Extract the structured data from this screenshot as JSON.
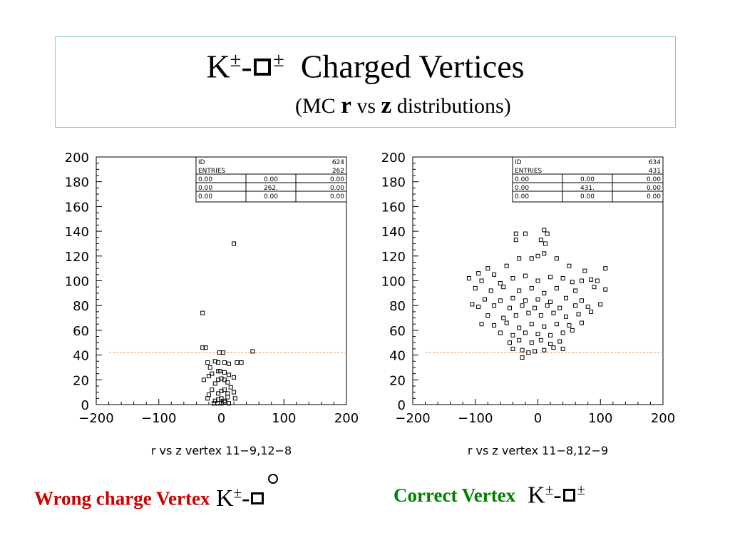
{
  "header": {
    "title_k": "K",
    "title_pm1": "±",
    "title_dash": "-",
    "title_pm2": "±",
    "title_text": "Charged Vertices",
    "subtitle_open": "(MC",
    "subtitle_r": "r",
    "subtitle_vs": "vs",
    "subtitle_z": "z",
    "subtitle_close": "distributions)"
  },
  "captions": {
    "wrong_label": "Wrong charge Vertex",
    "wrong_k": "K",
    "wrong_pm": "±",
    "wrong_dash": "-",
    "correct_label": "Correct Vertex",
    "correct_k": "K",
    "correct_pm1": "±",
    "correct_dash": "-",
    "correct_pm2": "±",
    "colors": {
      "wrong": "#cc0000",
      "correct": "#008000"
    }
  },
  "chart_data": [
    {
      "type": "scatter",
      "title": "",
      "xlabel": "r vs z vertex 11-9,12-8",
      "ylabel": "",
      "xlim": [
        -200,
        200
      ],
      "ylim": [
        0,
        200
      ],
      "xticks": [
        -200,
        -100,
        0,
        100,
        200
      ],
      "yticks": [
        0,
        20,
        40,
        60,
        80,
        100,
        120,
        140,
        160,
        180,
        200
      ],
      "cut_line_y": 42,
      "cut_line_color": "#e8956a",
      "stats": {
        "id_label": "ID",
        "id_value": "624",
        "entries_label": "ENTRIES",
        "entries_value": "262",
        "rows": [
          [
            "0.00",
            "0.00",
            "0.00"
          ],
          [
            "0.00",
            "262.",
            "0.00"
          ],
          [
            "0.00",
            "0.00",
            "0.00"
          ]
        ]
      },
      "points": [
        [
          -30,
          74
        ],
        [
          -30,
          46
        ],
        [
          -25,
          46
        ],
        [
          -3,
          42
        ],
        [
          3,
          42
        ],
        [
          20,
          130
        ],
        [
          50,
          43
        ],
        [
          -22,
          34
        ],
        [
          -18,
          30
        ],
        [
          -10,
          35
        ],
        [
          -5,
          34
        ],
        [
          5,
          34
        ],
        [
          12,
          33
        ],
        [
          25,
          34
        ],
        [
          32,
          34
        ],
        [
          -28,
          20
        ],
        [
          -20,
          23
        ],
        [
          -15,
          25
        ],
        [
          -5,
          27
        ],
        [
          -2,
          27
        ],
        [
          5,
          26
        ],
        [
          12,
          24
        ],
        [
          20,
          22
        ],
        [
          -15,
          12
        ],
        [
          -10,
          17
        ],
        [
          -5,
          20
        ],
        [
          0,
          21
        ],
        [
          5,
          20
        ],
        [
          10,
          18
        ],
        [
          15,
          14
        ],
        [
          -20,
          8
        ],
        [
          -5,
          9
        ],
        [
          0,
          11
        ],
        [
          5,
          12
        ],
        [
          10,
          9
        ],
        [
          20,
          10
        ],
        [
          -22,
          5
        ],
        [
          -10,
          3
        ],
        [
          -5,
          4
        ],
        [
          0,
          5
        ],
        [
          5,
          3
        ],
        [
          10,
          6
        ],
        [
          22,
          5
        ],
        [
          -12,
          1
        ],
        [
          -6,
          1
        ],
        [
          0,
          1
        ],
        [
          6,
          2
        ],
        [
          12,
          1
        ]
      ]
    },
    {
      "type": "scatter",
      "title": "",
      "xlabel": "r vs z vertex 11-8,12-9",
      "ylabel": "",
      "xlim": [
        -200,
        200
      ],
      "ylim": [
        0,
        200
      ],
      "xticks": [
        -200,
        -100,
        0,
        100,
        200
      ],
      "yticks": [
        0,
        20,
        40,
        60,
        80,
        100,
        120,
        140,
        160,
        180,
        200
      ],
      "cut_line_y": 42,
      "cut_line_color": "#e8956a",
      "stats": {
        "id_label": "ID",
        "id_value": "634",
        "entries_label": "ENTRIES",
        "entries_value": "431",
        "rows": [
          [
            "0.00",
            "0.00",
            "0.00"
          ],
          [
            "0.00",
            "431.",
            "0.00"
          ],
          [
            "0.00",
            "0.00",
            "0.00"
          ]
        ]
      },
      "points": [
        [
          -35,
          138
        ],
        [
          -20,
          138
        ],
        [
          -35,
          133
        ],
        [
          10,
          141
        ],
        [
          15,
          138
        ],
        [
          5,
          133
        ],
        [
          12,
          130
        ],
        [
          -95,
          106
        ],
        [
          -80,
          110
        ],
        [
          -70,
          105
        ],
        [
          -50,
          112
        ],
        [
          -30,
          118
        ],
        [
          -10,
          118
        ],
        [
          0,
          120
        ],
        [
          10,
          122
        ],
        [
          30,
          118
        ],
        [
          50,
          112
        ],
        [
          75,
          108
        ],
        [
          108,
          110
        ],
        [
          -110,
          102
        ],
        [
          -90,
          100
        ],
        [
          -60,
          98
        ],
        [
          -40,
          102
        ],
        [
          -20,
          104
        ],
        [
          0,
          100
        ],
        [
          20,
          103
        ],
        [
          40,
          102
        ],
        [
          55,
          99
        ],
        [
          70,
          100
        ],
        [
          85,
          101
        ],
        [
          95,
          100
        ],
        [
          -100,
          94
        ],
        [
          -75,
          92
        ],
        [
          -55,
          95
        ],
        [
          -30,
          92
        ],
        [
          -10,
          94
        ],
        [
          10,
          90
        ],
        [
          30,
          94
        ],
        [
          60,
          92
        ],
        [
          90,
          95
        ],
        [
          108,
          93
        ],
        [
          -85,
          85
        ],
        [
          -60,
          84
        ],
        [
          -40,
          86
        ],
        [
          -20,
          84
        ],
        [
          0,
          85
        ],
        [
          20,
          83
        ],
        [
          45,
          86
        ],
        [
          70,
          84
        ],
        [
          -105,
          81
        ],
        [
          -95,
          79
        ],
        [
          -70,
          80
        ],
        [
          -45,
          78
        ],
        [
          -25,
          80
        ],
        [
          -5,
          78
        ],
        [
          15,
          80
        ],
        [
          35,
          78
        ],
        [
          60,
          80
        ],
        [
          80,
          79
        ],
        [
          100,
          81
        ],
        [
          -80,
          72
        ],
        [
          -55,
          70
        ],
        [
          -35,
          72
        ],
        [
          -15,
          74
        ],
        [
          5,
          72
        ],
        [
          25,
          74
        ],
        [
          45,
          71
        ],
        [
          65,
          73
        ],
        [
          85,
          75
        ],
        [
          -90,
          65
        ],
        [
          -70,
          64
        ],
        [
          -50,
          66
        ],
        [
          -30,
          62
        ],
        [
          -10,
          65
        ],
        [
          10,
          63
        ],
        [
          30,
          65
        ],
        [
          50,
          64
        ],
        [
          70,
          66
        ],
        [
          -60,
          58
        ],
        [
          -40,
          56
        ],
        [
          -20,
          58
        ],
        [
          0,
          57
        ],
        [
          20,
          56
        ],
        [
          40,
          58
        ],
        [
          55,
          60
        ],
        [
          -45,
          50
        ],
        [
          -30,
          52
        ],
        [
          -10,
          50
        ],
        [
          5,
          52
        ],
        [
          20,
          49
        ],
        [
          35,
          51
        ],
        [
          -40,
          45
        ],
        [
          -25,
          44
        ],
        [
          -15,
          42
        ],
        [
          -5,
          43
        ],
        [
          10,
          44
        ],
        [
          25,
          46
        ],
        [
          40,
          45
        ],
        [
          -25,
          38
        ]
      ]
    }
  ]
}
